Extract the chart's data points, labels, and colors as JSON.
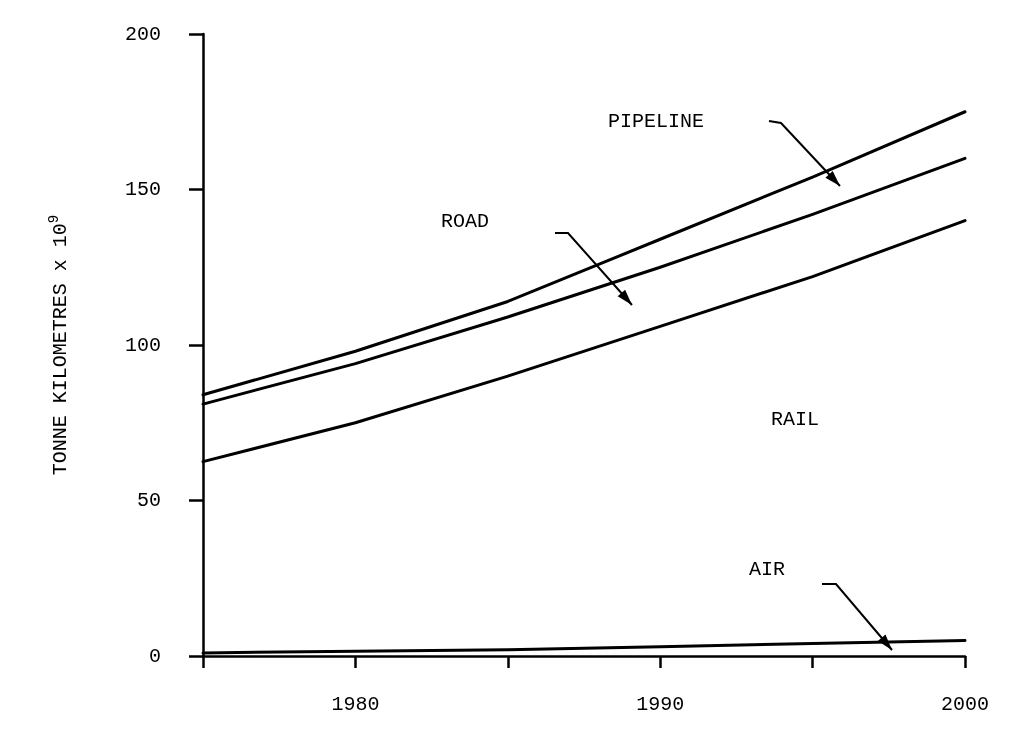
{
  "chart_data": {
    "type": "line",
    "ylabel": "TONNE KILOMETRES x 10$^{9}$",
    "x": [
      1975,
      1980,
      1985,
      1990,
      1995,
      2000
    ],
    "series": [
      {
        "color": "#000000",
        "values": [
          84,
          98,
          114,
          134,
          154,
          175
        ]
      },
      {
        "color": "#000000",
        "values": [
          81,
          94,
          109,
          125,
          142,
          160
        ]
      },
      {
        "color": "#000000",
        "values": [
          62.5,
          75,
          90,
          106,
          122,
          140
        ]
      },
      {
        "color": "#000000",
        "values": [
          1,
          1.5,
          2,
          3,
          4,
          5
        ]
      }
    ],
    "xlim": [
      1975,
      2000
    ],
    "xticks": [
      {
        "value": 1975,
        "label": null
      },
      1980,
      {
        "value": 1985,
        "label": null
      },
      1990,
      {
        "value": 1995,
        "label": null
      },
      2000
    ],
    "ylim": [
      0,
      200
    ],
    "yticks": [
      0,
      50,
      100,
      150,
      200
    ],
    "grid": false,
    "marker": "none",
    "line_style": "solid",
    "annotations": [
      "PIPELINE",
      "ROAD",
      "RAIL",
      "AIR"
    ]
  }
}
